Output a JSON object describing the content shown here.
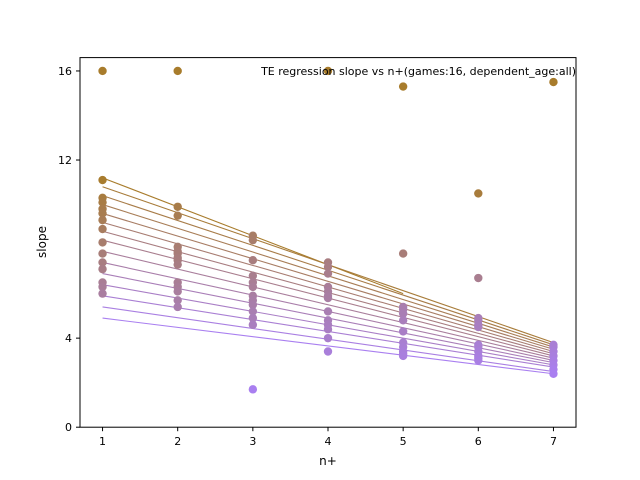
{
  "chart_data": {
    "type": "scatter",
    "title": "TE regression slope vs n+(games:16, dependent_age:all)",
    "xlabel": "n+",
    "ylabel": "slope",
    "xlim": [
      0.7,
      7.3
    ],
    "ylim": [
      0,
      16.6
    ],
    "x_ticks": [
      "1",
      "2",
      "3",
      "4",
      "5",
      "6",
      "7"
    ],
    "y_ticks": [
      "0",
      "4",
      "12",
      "16"
    ],
    "y_tick_values": [
      0,
      4,
      12,
      16
    ],
    "grid": false,
    "color_start": "#a87c2c",
    "color_end": "#a97ff0",
    "points": [
      [
        1,
        16.0
      ],
      [
        2,
        16.0
      ],
      [
        4,
        16.0
      ],
      [
        5,
        15.3
      ],
      [
        7,
        15.5
      ],
      [
        1,
        11.1
      ],
      [
        1,
        10.3
      ],
      [
        1,
        10.1
      ],
      [
        1,
        9.8
      ],
      [
        1,
        9.6
      ],
      [
        1,
        9.3
      ],
      [
        1,
        8.9
      ],
      [
        1,
        8.3
      ],
      [
        1,
        7.8
      ],
      [
        1,
        7.4
      ],
      [
        1,
        7.1
      ],
      [
        1,
        6.5
      ],
      [
        1,
        6.3
      ],
      [
        1,
        6.0
      ],
      [
        2,
        9.9
      ],
      [
        2,
        9.5
      ],
      [
        2,
        8.1
      ],
      [
        2,
        7.9
      ],
      [
        2,
        7.8
      ],
      [
        2,
        7.6
      ],
      [
        2,
        7.5
      ],
      [
        2,
        7.3
      ],
      [
        2,
        6.5
      ],
      [
        2,
        6.3
      ],
      [
        2,
        6.1
      ],
      [
        2,
        5.7
      ],
      [
        2,
        5.4
      ],
      [
        3,
        8.6
      ],
      [
        3,
        8.4
      ],
      [
        3,
        7.5
      ],
      [
        3,
        6.8
      ],
      [
        3,
        6.5
      ],
      [
        3,
        6.3
      ],
      [
        3,
        5.9
      ],
      [
        3,
        5.7
      ],
      [
        3,
        5.5
      ],
      [
        3,
        5.2
      ],
      [
        3,
        4.9
      ],
      [
        3,
        4.6
      ],
      [
        3,
        1.7
      ],
      [
        4,
        7.4
      ],
      [
        4,
        7.2
      ],
      [
        4,
        6.9
      ],
      [
        4,
        6.3
      ],
      [
        4,
        6.1
      ],
      [
        4,
        5.9
      ],
      [
        4,
        5.8
      ],
      [
        4,
        5.2
      ],
      [
        4,
        4.8
      ],
      [
        4,
        4.6
      ],
      [
        4,
        4.4
      ],
      [
        4,
        4.0
      ],
      [
        4,
        3.4
      ],
      [
        5,
        7.8
      ],
      [
        5,
        5.4
      ],
      [
        5,
        5.3
      ],
      [
        5,
        5.1
      ],
      [
        5,
        4.8
      ],
      [
        5,
        4.3
      ],
      [
        5,
        3.8
      ],
      [
        5,
        3.6
      ],
      [
        5,
        3.4
      ],
      [
        5,
        3.3
      ],
      [
        5,
        3.2
      ],
      [
        6,
        10.5
      ],
      [
        6,
        6.7
      ],
      [
        6,
        4.9
      ],
      [
        6,
        4.8
      ],
      [
        6,
        4.6
      ],
      [
        6,
        4.5
      ],
      [
        6,
        3.7
      ],
      [
        6,
        3.6
      ],
      [
        6,
        3.4
      ],
      [
        6,
        3.2
      ],
      [
        6,
        3.1
      ],
      [
        6,
        3.0
      ],
      [
        7,
        3.7
      ],
      [
        7,
        3.6
      ],
      [
        7,
        3.4
      ],
      [
        7,
        3.2
      ],
      [
        7,
        3.0
      ],
      [
        7,
        2.8
      ],
      [
        7,
        2.6
      ],
      [
        7,
        2.4
      ]
    ],
    "lines": [
      {
        "x1": 1,
        "y1": 11.2,
        "x2": 5,
        "y2": 6.0
      },
      {
        "x1": 1,
        "y1": 10.8,
        "x2": 7,
        "y2": 3.8
      },
      {
        "x1": 1,
        "y1": 10.4,
        "x2": 7,
        "y2": 3.7
      },
      {
        "x1": 1,
        "y1": 10.0,
        "x2": 7,
        "y2": 3.6
      },
      {
        "x1": 1,
        "y1": 9.6,
        "x2": 7,
        "y2": 3.5
      },
      {
        "x1": 1,
        "y1": 9.2,
        "x2": 7,
        "y2": 3.4
      },
      {
        "x1": 1,
        "y1": 8.8,
        "x2": 7,
        "y2": 3.3
      },
      {
        "x1": 1,
        "y1": 8.4,
        "x2": 7,
        "y2": 3.2
      },
      {
        "x1": 1,
        "y1": 7.9,
        "x2": 7,
        "y2": 3.1
      },
      {
        "x1": 1,
        "y1": 7.4,
        "x2": 7,
        "y2": 3.0
      },
      {
        "x1": 1,
        "y1": 6.9,
        "x2": 7,
        "y2": 2.9
      },
      {
        "x1": 1,
        "y1": 6.4,
        "x2": 7,
        "y2": 2.8
      },
      {
        "x1": 1,
        "y1": 5.9,
        "x2": 7,
        "y2": 2.7
      },
      {
        "x1": 1,
        "y1": 5.4,
        "x2": 7,
        "y2": 2.5
      },
      {
        "x1": 1,
        "y1": 4.9,
        "x2": 7,
        "y2": 2.4
      }
    ]
  }
}
